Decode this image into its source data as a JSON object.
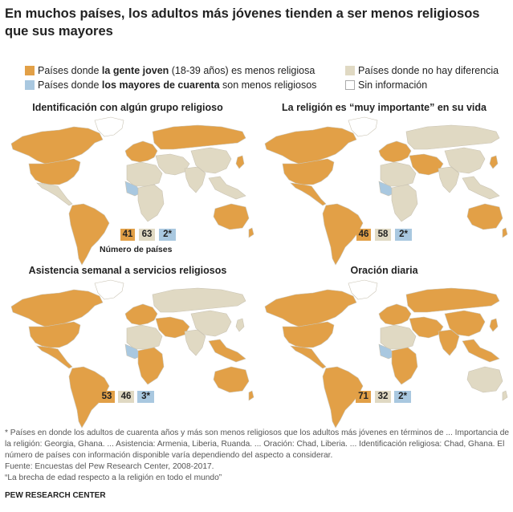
{
  "title": "En muchos países, los adultos más jóvenes tienden a ser menos religiosos que sus mayores",
  "colors": {
    "young": "#e2a047",
    "older": "#a9c8e0",
    "nodiff": "#e0d9c3",
    "noinfo": "#ffffff",
    "outline": "#c9c3b3"
  },
  "legend": {
    "young_pre": "Países donde ",
    "young_bold": "la gente joven",
    "young_post": " (18-39 años) es menos religiosa",
    "older_pre": "Países donde ",
    "older_bold": "los mayores de cuarenta",
    "older_post": " son menos religiosos",
    "nodiff": "Países donde no hay diferencia",
    "noinfo": "Sin información"
  },
  "panels": [
    {
      "title": "Identificación con algún grupo religioso",
      "young": "41",
      "nodiff": "63",
      "older": "2*"
    },
    {
      "title": "La religión es “muy importante” en su vida",
      "young": "46",
      "nodiff": "58",
      "older": "2*"
    },
    {
      "title": "Asistencia semanal a servicios religiosos",
      "young": "53",
      "nodiff": "46",
      "older": "3*"
    },
    {
      "title": "Oración diaria",
      "young": "71",
      "nodiff": "32",
      "older": "2*"
    }
  ],
  "count_label": "Número de países",
  "footnotes": {
    "line1": "* Países en donde los adultos de cuarenta años y más son menos religiosos que los adultos más jóvenes en términos de  ... Importancia de",
    "line2": "la religión: Georgia, Ghana.  ... Asistencia: Armenia, Liberia, Ruanda.  ... Oración: Chad, Liberia.  ... Identificación religiosa: Chad, Ghana. El",
    "line3": "número de países con información disponible varía dependiendo del aspecto a considerar.",
    "source": "Fuente: Encuestas del Pew Research Center, 2008-2017.",
    "report": "“La brecha de edad respecto a la religión en todo el mundo”"
  },
  "brand": "PEW RESEARCH CENTER"
}
